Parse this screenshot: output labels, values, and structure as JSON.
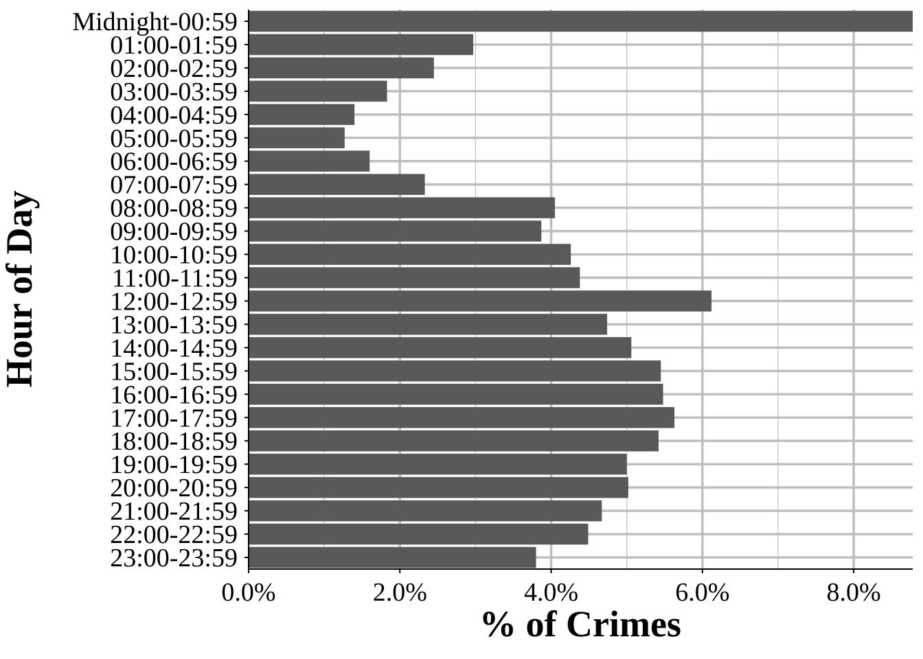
{
  "chart_data": {
    "type": "bar",
    "orientation": "horizontal",
    "title": "",
    "xlabel": "% of Crimes",
    "ylabel": "Hour of Day",
    "categories": [
      "Midnight-00:59",
      "01:00-01:59",
      "02:00-02:59",
      "03:00-03:59",
      "04:00-04:59",
      "05:00-05:59",
      "06:00-06:59",
      "07:00-07:59",
      "08:00-08:59",
      "09:00-09:59",
      "10:00-10:59",
      "11:00-11:59",
      "12:00-12:59",
      "13:00-13:59",
      "14:00-14:59",
      "15:00-15:59",
      "16:00-16:59",
      "17:00-17:59",
      "18:00-18:59",
      "19:00-19:59",
      "20:00-20:59",
      "21:00-21:59",
      "22:00-22:59",
      "23:00-23:59"
    ],
    "values": [
      8.78,
      2.97,
      2.45,
      1.83,
      1.4,
      1.27,
      1.6,
      2.33,
      4.05,
      3.87,
      4.26,
      4.38,
      6.12,
      4.74,
      5.06,
      5.45,
      5.48,
      5.63,
      5.42,
      5.0,
      5.02,
      4.67,
      4.49,
      3.8
    ],
    "xlim": [
      0,
      8.78
    ],
    "xticks": [
      0,
      2,
      4,
      6,
      8
    ],
    "xtick_labels": [
      "0.0%",
      "2.0%",
      "4.0%",
      "6.0%",
      "8.0%"
    ],
    "grid": true,
    "legend": "none",
    "colors": {
      "bar": "#595959",
      "grid": "#bebebe",
      "axis": "#000000"
    }
  }
}
